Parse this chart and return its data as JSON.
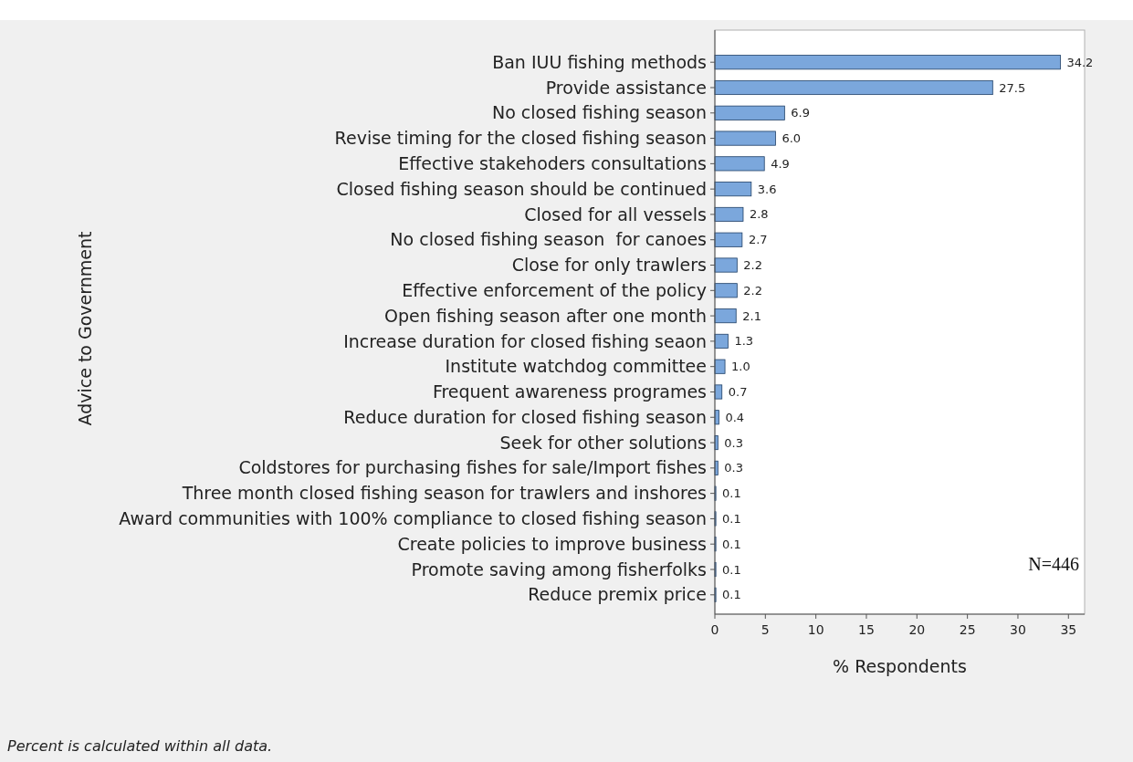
{
  "chart_data": {
    "type": "bar",
    "orientation": "horizontal",
    "ylabel": "Advice to Government",
    "xlabel": "% Respondents",
    "categories": [
      "Ban IUU fishing methods",
      "Provide assistance",
      "No closed fishing season",
      "Revise timing for the closed fishing season",
      "Effective stakehoders consultations",
      "Closed fishing season should be continued",
      "Closed for all vessels",
      "No closed fishing season  for canoes",
      "Close for only trawlers",
      "Effective enforcement of the policy",
      "Open fishing season after one month",
      "Increase duration for closed fishing seaon",
      "Institute watchdog committee",
      "Frequent awareness programes",
      "Reduce duration for closed fishing season",
      "Seek for other solutions",
      "Coldstores for purchasing fishes for sale/Import fishes",
      "Three month closed fishing season for trawlers and inshores",
      "Award communities with 100% compliance to closed fishing season",
      "Create policies to improve business",
      "Promote saving among fisherfolks",
      "Reduce premix price"
    ],
    "values": [
      34.2,
      27.5,
      6.9,
      6.0,
      4.9,
      3.6,
      2.8,
      2.7,
      2.2,
      2.2,
      2.1,
      1.3,
      1.0,
      0.7,
      0.4,
      0.3,
      0.3,
      0.1,
      0.1,
      0.1,
      0.1,
      0.1
    ],
    "value_labels": [
      "34.2",
      "27.5",
      "6.9",
      "6.0",
      "4.9",
      "3.6",
      "2.8",
      "2.7",
      "2.2",
      "2.2",
      "2.1",
      "1.3",
      "1.0",
      "0.7",
      "0.4",
      "0.3",
      "0.3",
      "0.1",
      "0.1",
      "0.1",
      "0.1",
      "0.1"
    ],
    "color": "#7ba7dc",
    "xlim": [
      0,
      36.6
    ],
    "xticks": [
      0,
      5,
      10,
      15,
      20,
      25,
      30,
      35
    ],
    "annotations": [
      "N=446",
      "Percent is calculated within all data."
    ]
  }
}
